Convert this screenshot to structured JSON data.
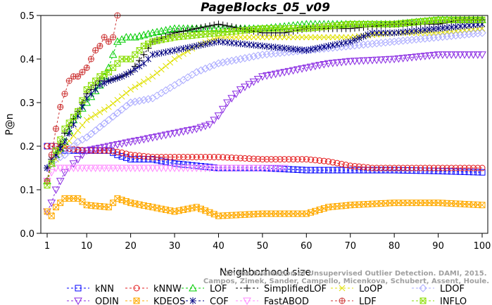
{
  "chart_data": {
    "type": "line",
    "title": "PageBlocks_05_v09",
    "xlabel": "Neighborhood size",
    "ylabel": "P@n",
    "xlim": [
      1,
      100
    ],
    "ylim": [
      0,
      0.5
    ],
    "xticks": [
      1,
      10,
      20,
      30,
      40,
      50,
      60,
      70,
      80,
      90,
      100
    ],
    "yticks": [
      0.0,
      0.1,
      0.2,
      0.3,
      0.4,
      0.5
    ],
    "xtick_labels": [
      "1",
      "10",
      "20",
      "30",
      "40",
      "50",
      "60",
      "70",
      "80",
      "90",
      "100"
    ],
    "ytick_labels": [
      "0.0",
      "0.1",
      "0.2",
      "0.3",
      "0.4",
      "0.5"
    ],
    "grid": false,
    "legend_position": "bottom",
    "watermark": "Campos, Zimek, Sander, Campello, Micenkova, Schubert, Assent, Houle. On the Evaluation of Unsupervised Outlier Detection. DAMI, 2015.",
    "series": [
      {
        "name": "kNN",
        "color": "#0000ff",
        "marker": "square",
        "dash": "3,3",
        "points": [
          [
            1,
            0.2
          ],
          [
            2,
            0.2
          ],
          [
            3,
            0.19
          ],
          [
            5,
            0.19
          ],
          [
            10,
            0.19
          ],
          [
            15,
            0.19
          ],
          [
            17,
            0.18
          ],
          [
            20,
            0.17
          ],
          [
            25,
            0.17
          ],
          [
            30,
            0.16
          ],
          [
            35,
            0.155
          ],
          [
            40,
            0.15
          ],
          [
            50,
            0.15
          ],
          [
            60,
            0.145
          ],
          [
            70,
            0.145
          ],
          [
            80,
            0.145
          ],
          [
            90,
            0.143
          ],
          [
            100,
            0.14
          ]
        ]
      },
      {
        "name": "kNNW",
        "color": "#e41a1c",
        "marker": "circle",
        "dash": "3,3",
        "points": [
          [
            1,
            0.2
          ],
          [
            2,
            0.2
          ],
          [
            3,
            0.2
          ],
          [
            5,
            0.195
          ],
          [
            10,
            0.19
          ],
          [
            15,
            0.19
          ],
          [
            18,
            0.185
          ],
          [
            20,
            0.18
          ],
          [
            25,
            0.175
          ],
          [
            30,
            0.175
          ],
          [
            40,
            0.175
          ],
          [
            50,
            0.17
          ],
          [
            60,
            0.17
          ],
          [
            65,
            0.165
          ],
          [
            70,
            0.155
          ],
          [
            75,
            0.15
          ],
          [
            80,
            0.15
          ],
          [
            90,
            0.15
          ],
          [
            100,
            0.15
          ]
        ]
      },
      {
        "name": "LOF",
        "color": "#00cc00",
        "marker": "triangle",
        "dash": "3,3",
        "points": [
          [
            1,
            0.12
          ],
          [
            2,
            0.16
          ],
          [
            3,
            0.18
          ],
          [
            5,
            0.21
          ],
          [
            7,
            0.26
          ],
          [
            10,
            0.3
          ],
          [
            13,
            0.34
          ],
          [
            15,
            0.38
          ],
          [
            17,
            0.44
          ],
          [
            19,
            0.45
          ],
          [
            21,
            0.45
          ],
          [
            25,
            0.46
          ],
          [
            30,
            0.47
          ],
          [
            40,
            0.47
          ],
          [
            50,
            0.47
          ],
          [
            60,
            0.48
          ],
          [
            70,
            0.48
          ],
          [
            80,
            0.48
          ],
          [
            90,
            0.49
          ],
          [
            100,
            0.49
          ]
        ]
      },
      {
        "name": "SimplifiedLOF",
        "color": "#000000",
        "marker": "plus",
        "dash": "3,3",
        "points": [
          [
            1,
            0.15
          ],
          [
            2,
            0.17
          ],
          [
            3,
            0.18
          ],
          [
            5,
            0.23
          ],
          [
            8,
            0.28
          ],
          [
            10,
            0.32
          ],
          [
            13,
            0.35
          ],
          [
            15,
            0.35
          ],
          [
            18,
            0.36
          ],
          [
            20,
            0.37
          ],
          [
            23,
            0.41
          ],
          [
            25,
            0.44
          ],
          [
            30,
            0.46
          ],
          [
            35,
            0.47
          ],
          [
            40,
            0.48
          ],
          [
            45,
            0.47
          ],
          [
            50,
            0.46
          ],
          [
            55,
            0.46
          ],
          [
            60,
            0.47
          ],
          [
            70,
            0.47
          ],
          [
            80,
            0.48
          ],
          [
            90,
            0.48
          ],
          [
            95,
            0.49
          ],
          [
            100,
            0.49
          ]
        ]
      },
      {
        "name": "LoOP",
        "color": "#e0e000",
        "marker": "x",
        "dash": "3,3",
        "points": [
          [
            1,
            0.15
          ],
          [
            3,
            0.17
          ],
          [
            5,
            0.2
          ],
          [
            10,
            0.26
          ],
          [
            15,
            0.29
          ],
          [
            20,
            0.33
          ],
          [
            25,
            0.36
          ],
          [
            30,
            0.4
          ],
          [
            35,
            0.43
          ],
          [
            40,
            0.45
          ],
          [
            50,
            0.45
          ],
          [
            60,
            0.45
          ],
          [
            70,
            0.45
          ],
          [
            80,
            0.46
          ],
          [
            90,
            0.46
          ],
          [
            100,
            0.47
          ]
        ]
      },
      {
        "name": "LDOF",
        "color": "#aaaaff",
        "marker": "diamond",
        "dash": "3,3",
        "points": [
          [
            1,
            0.15
          ],
          [
            3,
            0.17
          ],
          [
            5,
            0.18
          ],
          [
            8,
            0.21
          ],
          [
            10,
            0.22
          ],
          [
            15,
            0.26
          ],
          [
            20,
            0.3
          ],
          [
            25,
            0.31
          ],
          [
            30,
            0.34
          ],
          [
            35,
            0.37
          ],
          [
            40,
            0.39
          ],
          [
            45,
            0.4
          ],
          [
            50,
            0.41
          ],
          [
            60,
            0.42
          ],
          [
            70,
            0.43
          ],
          [
            80,
            0.44
          ],
          [
            90,
            0.45
          ],
          [
            100,
            0.46
          ]
        ]
      },
      {
        "name": "ODIN",
        "color": "#8a2be2",
        "marker": "triangle-down",
        "dash": "3,3",
        "points": [
          [
            1,
            0.05
          ],
          [
            2,
            0.07
          ],
          [
            3,
            0.1
          ],
          [
            5,
            0.14
          ],
          [
            8,
            0.17
          ],
          [
            10,
            0.19
          ],
          [
            15,
            0.2
          ],
          [
            20,
            0.21
          ],
          [
            25,
            0.22
          ],
          [
            30,
            0.23
          ],
          [
            35,
            0.24
          ],
          [
            38,
            0.25
          ],
          [
            40,
            0.27
          ],
          [
            42,
            0.3
          ],
          [
            45,
            0.33
          ],
          [
            50,
            0.36
          ],
          [
            55,
            0.37
          ],
          [
            60,
            0.38
          ],
          [
            65,
            0.39
          ],
          [
            70,
            0.395
          ],
          [
            80,
            0.4
          ],
          [
            90,
            0.41
          ],
          [
            100,
            0.41
          ]
        ]
      },
      {
        "name": "KDEOS",
        "color": "#ffaa00",
        "marker": "square-x",
        "dash": "3,3",
        "points": [
          [
            1,
            0.05
          ],
          [
            2,
            0.04
          ],
          [
            3,
            0.06
          ],
          [
            5,
            0.08
          ],
          [
            8,
            0.08
          ],
          [
            10,
            0.065
          ],
          [
            15,
            0.06
          ],
          [
            17,
            0.08
          ],
          [
            20,
            0.07
          ],
          [
            25,
            0.06
          ],
          [
            30,
            0.05
          ],
          [
            35,
            0.06
          ],
          [
            40,
            0.04
          ],
          [
            50,
            0.045
          ],
          [
            60,
            0.045
          ],
          [
            65,
            0.06
          ],
          [
            70,
            0.065
          ],
          [
            80,
            0.07
          ],
          [
            90,
            0.07
          ],
          [
            100,
            0.065
          ]
        ]
      },
      {
        "name": "COF",
        "color": "#000080",
        "marker": "asterisk",
        "dash": "3,3",
        "points": [
          [
            1,
            0.15
          ],
          [
            2,
            0.17
          ],
          [
            3,
            0.18
          ],
          [
            5,
            0.21
          ],
          [
            8,
            0.27
          ],
          [
            10,
            0.31
          ],
          [
            13,
            0.34
          ],
          [
            15,
            0.35
          ],
          [
            18,
            0.36
          ],
          [
            20,
            0.37
          ],
          [
            23,
            0.39
          ],
          [
            25,
            0.41
          ],
          [
            30,
            0.42
          ],
          [
            35,
            0.43
          ],
          [
            40,
            0.44
          ],
          [
            50,
            0.43
          ],
          [
            60,
            0.42
          ],
          [
            65,
            0.43
          ],
          [
            70,
            0.44
          ],
          [
            75,
            0.46
          ],
          [
            80,
            0.46
          ],
          [
            90,
            0.47
          ],
          [
            100,
            0.48
          ]
        ]
      },
      {
        "name": "FastABOD",
        "color": "#ff88ff",
        "marker": "triangle-down",
        "dash": "3,3",
        "points": [
          [
            1,
            0.12
          ],
          [
            2,
            0.14
          ],
          [
            3,
            0.15
          ],
          [
            5,
            0.15
          ],
          [
            10,
            0.15
          ],
          [
            20,
            0.15
          ],
          [
            30,
            0.15
          ],
          [
            40,
            0.15
          ],
          [
            50,
            0.15
          ],
          [
            55,
            0.15
          ]
        ]
      },
      {
        "name": "LDF",
        "color": "#cc3333",
        "marker": "circle-plus",
        "dash": "3,3",
        "points": [
          [
            1,
            0.12
          ],
          [
            2,
            0.18
          ],
          [
            3,
            0.24
          ],
          [
            4,
            0.29
          ],
          [
            5,
            0.32
          ],
          [
            6,
            0.35
          ],
          [
            7,
            0.36
          ],
          [
            8,
            0.36
          ],
          [
            9,
            0.37
          ],
          [
            10,
            0.38
          ],
          [
            11,
            0.4
          ],
          [
            12,
            0.42
          ],
          [
            13,
            0.43
          ],
          [
            14,
            0.45
          ],
          [
            15,
            0.44
          ],
          [
            16,
            0.45
          ],
          [
            17,
            0.5
          ]
        ]
      },
      {
        "name": "INFLO",
        "color": "#88dd00",
        "marker": "square-x",
        "dash": "3,3",
        "points": [
          [
            1,
            0.11
          ],
          [
            2,
            0.16
          ],
          [
            3,
            0.19
          ],
          [
            5,
            0.24
          ],
          [
            8,
            0.28
          ],
          [
            10,
            0.33
          ],
          [
            13,
            0.36
          ],
          [
            15,
            0.37
          ],
          [
            18,
            0.4
          ],
          [
            20,
            0.4
          ],
          [
            23,
            0.43
          ],
          [
            25,
            0.44
          ],
          [
            30,
            0.45
          ],
          [
            40,
            0.46
          ],
          [
            50,
            0.47
          ],
          [
            60,
            0.47
          ],
          [
            70,
            0.48
          ],
          [
            80,
            0.48
          ],
          [
            90,
            0.49
          ],
          [
            100,
            0.49
          ]
        ]
      }
    ]
  }
}
